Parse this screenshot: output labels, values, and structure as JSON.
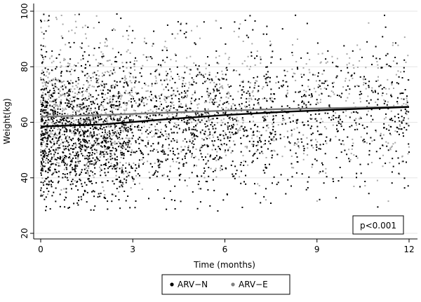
{
  "chart_data": {
    "type": "scatter",
    "xlabel": "Time (months)",
    "ylabel": "Weight(kg)",
    "xlim": [
      0,
      12
    ],
    "ylim": [
      20,
      100
    ],
    "x_ticks": [
      0,
      3,
      6,
      9,
      12
    ],
    "y_ticks": [
      20,
      40,
      60,
      80,
      100
    ],
    "grid": "horizontal",
    "legend_position": "bottom",
    "annotation": "p<0.001",
    "annotation_position": "bottom-right",
    "series": [
      {
        "name": "ARV−N",
        "color": "#000000",
        "marker": "dot",
        "approx_point_count": 6000,
        "x_distribution": "dense 0-3, moderate 3-7.5, sparse 7.5-12",
        "y_range": [
          28,
          99
        ],
        "y_center": 56,
        "trend": {
          "x": [
            0,
            2,
            4,
            6,
            8,
            10,
            12
          ],
          "y": [
            58.5,
            59.2,
            61,
            62.6,
            63.8,
            64.7,
            65.5
          ]
        }
      },
      {
        "name": "ARV−E",
        "color": "#a6a6a6",
        "marker": "dot",
        "approx_point_count": 3500,
        "x_distribution": "dense 0-3, moderate 3-7.5, sparse 7.5-12",
        "y_range": [
          30,
          99
        ],
        "y_center": 65,
        "trend": {
          "x": [
            0,
            2,
            4,
            6,
            8,
            10,
            12
          ],
          "y": [
            62,
            62.6,
            63.4,
            64.2,
            64.8,
            65.2,
            65.6
          ]
        }
      }
    ]
  }
}
